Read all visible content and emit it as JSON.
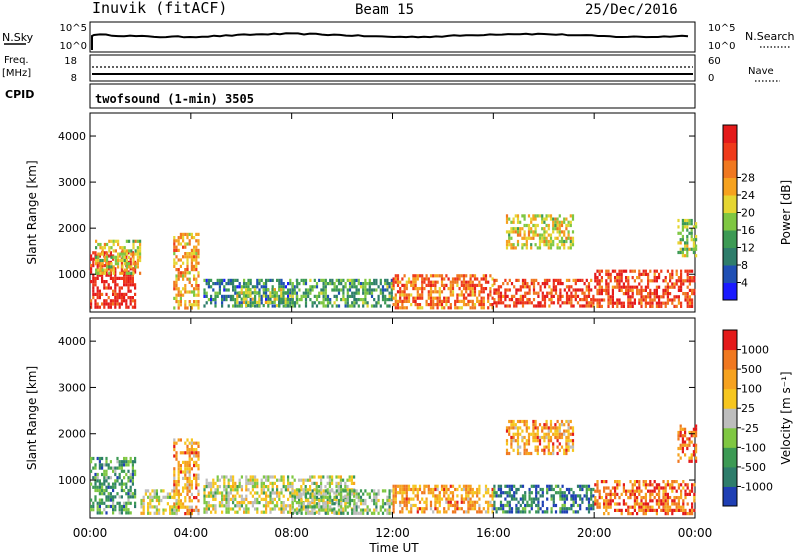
{
  "header": {
    "station": "Inuvik (fitACF)",
    "beam": "Beam 15",
    "date": "25/Dec/2016"
  },
  "noise_panel": {
    "left_label": "N.Sky",
    "left_tick_top": "10^5",
    "left_tick_bottom": "10^0",
    "right_label": "N.Search",
    "right_tick_top": "10^5",
    "right_tick_bottom": "10^0"
  },
  "freq_panel": {
    "left_label_1": "Freq.",
    "left_label_2": "[MHz]",
    "left_tick_top": "18",
    "left_tick_bottom": "8",
    "right_label": "Nave",
    "right_tick_top": "60",
    "right_tick_bottom": "0"
  },
  "cpid_panel": {
    "label": "CPID",
    "value": "twofsound (1-min) 3505"
  },
  "chart_data": [
    {
      "type": "heatmap",
      "name": "power",
      "ylabel": "Slant Range [km]",
      "ylim": [
        180,
        4500
      ],
      "y_ticks": [
        "1000",
        "2000",
        "3000",
        "4000"
      ],
      "x_ticks": [
        "00:00",
        "04:00",
        "08:00",
        "12:00",
        "16:00",
        "20:00",
        "00:00"
      ],
      "xlim_hours": [
        0,
        24
      ],
      "colorbar": {
        "label": "Power [dB]",
        "ticks": [
          "4",
          "8",
          "12",
          "16",
          "20",
          "24",
          "28"
        ],
        "colors": [
          "#1a1aff",
          "#1f4fb4",
          "#2e7d6b",
          "#3c9a54",
          "#7fc742",
          "#e5d632",
          "#f6a21f",
          "#f07820",
          "#ef3a1a",
          "#e41a1a"
        ]
      },
      "regions": [
        {
          "t0": 0.0,
          "t1": 1.8,
          "r0": 300,
          "r1": 1500,
          "level": 9
        },
        {
          "t0": 0.2,
          "t1": 2.0,
          "r0": 1000,
          "r1": 1750,
          "level": 5
        },
        {
          "t0": 3.3,
          "t1": 4.3,
          "r0": 300,
          "r1": 1900,
          "level": 6
        },
        {
          "t0": 4.5,
          "t1": 8.2,
          "r0": 300,
          "r1": 900,
          "level": 2
        },
        {
          "t0": 5.8,
          "t1": 8.0,
          "r0": 300,
          "r1": 700,
          "level": 4
        },
        {
          "t0": 8.0,
          "t1": 12.0,
          "r0": 300,
          "r1": 900,
          "level": 3
        },
        {
          "t0": 12.0,
          "t1": 16.0,
          "r0": 300,
          "r1": 1000,
          "level": 7
        },
        {
          "t0": 16.0,
          "t1": 20.0,
          "r0": 300,
          "r1": 900,
          "level": 8
        },
        {
          "t0": 16.5,
          "t1": 19.2,
          "r0": 1600,
          "r1": 2300,
          "level": 5
        },
        {
          "t0": 20.0,
          "t1": 24.0,
          "r0": 300,
          "r1": 1100,
          "level": 8
        },
        {
          "t0": 23.3,
          "t1": 24.0,
          "r0": 1400,
          "r1": 2200,
          "level": 4
        }
      ]
    },
    {
      "type": "heatmap",
      "name": "velocity",
      "ylabel": "Slant Range [km]",
      "ylim": [
        180,
        4500
      ],
      "y_ticks": [
        "1000",
        "2000",
        "3000",
        "4000"
      ],
      "x_ticks": [
        "00:00",
        "04:00",
        "08:00",
        "12:00",
        "16:00",
        "20:00",
        "00:00"
      ],
      "xlim_hours": [
        0,
        24
      ],
      "colorbar": {
        "label": "Velocity [m s⁻¹]",
        "ticks": [
          "1000",
          "500",
          "100",
          "25",
          "-25",
          "-100",
          "-500",
          "-1000"
        ],
        "colors": [
          "#1f3fb4",
          "#2e7d6b",
          "#3c9a54",
          "#7fc742",
          "#bdbdbd",
          "#f6c61f",
          "#f6a21f",
          "#f07820",
          "#e41a1a"
        ]
      },
      "regions": [
        {
          "t0": 0.0,
          "t1": 1.8,
          "r0": 300,
          "r1": 1500,
          "level": 2
        },
        {
          "t0": 2.0,
          "t1": 3.5,
          "r0": 300,
          "r1": 800,
          "level": 4
        },
        {
          "t0": 3.3,
          "t1": 4.3,
          "r0": 300,
          "r1": 1900,
          "level": 6
        },
        {
          "t0": 4.5,
          "t1": 10.5,
          "r0": 300,
          "r1": 1100,
          "level": 4
        },
        {
          "t0": 8.0,
          "t1": 12.0,
          "r0": 300,
          "r1": 800,
          "level": 3
        },
        {
          "t0": 12.0,
          "t1": 16.0,
          "r0": 300,
          "r1": 900,
          "level": 6
        },
        {
          "t0": 16.0,
          "t1": 20.0,
          "r0": 300,
          "r1": 900,
          "level": 1
        },
        {
          "t0": 16.5,
          "t1": 19.2,
          "r0": 1600,
          "r1": 2300,
          "level": 6
        },
        {
          "t0": 20.0,
          "t1": 24.0,
          "r0": 300,
          "r1": 1000,
          "level": 7
        },
        {
          "t0": 23.3,
          "t1": 24.0,
          "r0": 1400,
          "r1": 2200,
          "level": 7
        }
      ]
    }
  ],
  "xlabel": "Time UT"
}
